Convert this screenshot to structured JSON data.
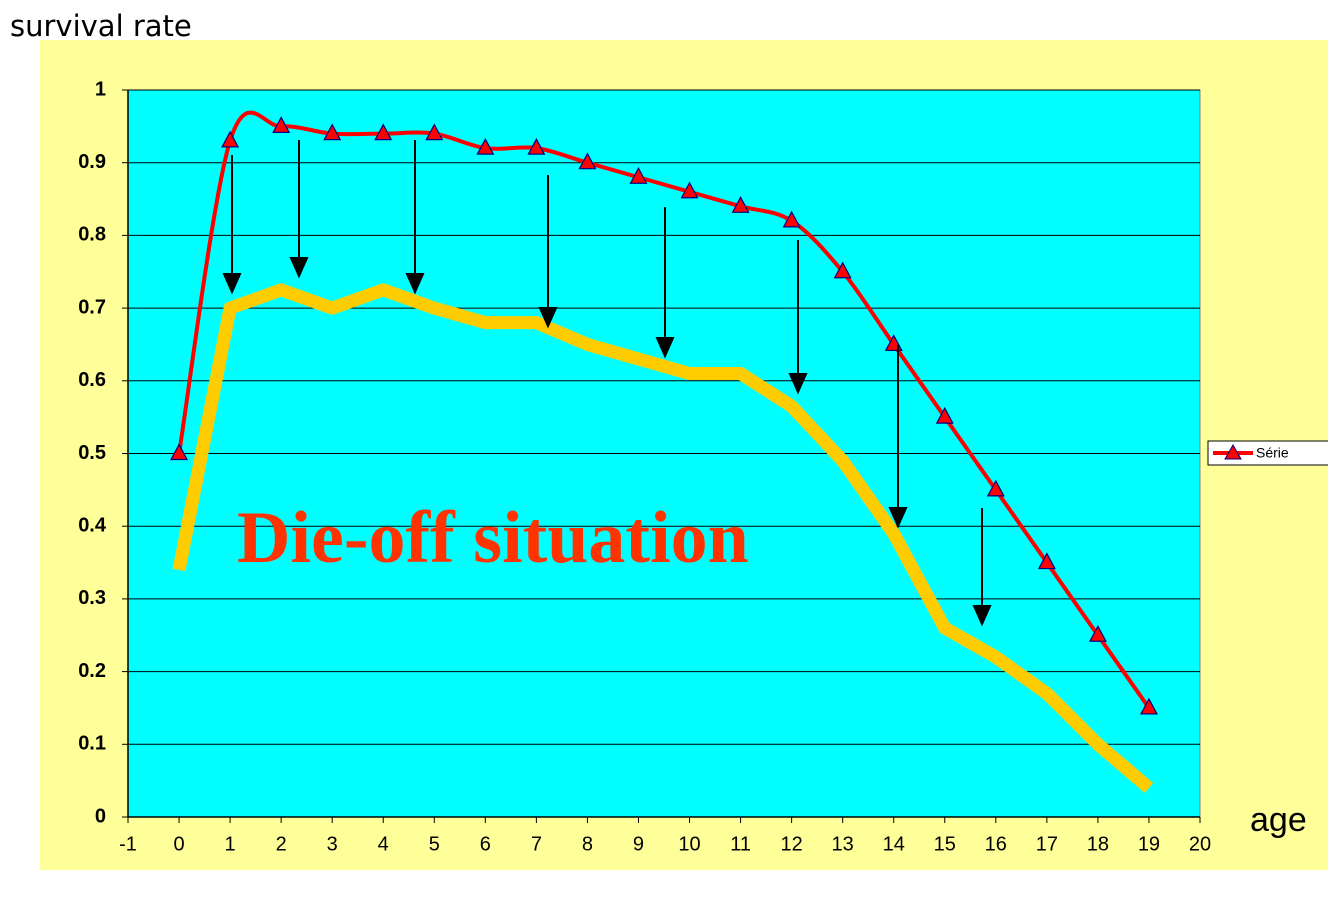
{
  "chart_data": {
    "type": "line",
    "y_label": "survival rate",
    "x_label": "age",
    "annotation": "Die-off situation",
    "x": [
      0,
      1,
      2,
      3,
      4,
      5,
      6,
      7,
      8,
      9,
      10,
      11,
      12,
      13,
      14,
      15,
      16,
      17,
      18,
      19
    ],
    "series": [
      {
        "name": "Série",
        "color": "#ff0000",
        "marker": "triangle",
        "values": [
          0.5,
          0.93,
          0.95,
          0.94,
          0.94,
          0.94,
          0.92,
          0.92,
          0.9,
          0.88,
          0.86,
          0.84,
          0.82,
          0.75,
          0.65,
          0.55,
          0.45,
          0.35,
          0.25,
          0.15
        ]
      },
      {
        "color": "#ffcc00",
        "values": [
          0.34,
          0.7,
          0.725,
          0.7,
          0.725,
          0.7,
          0.68,
          0.68,
          0.65,
          0.63,
          0.61,
          0.61,
          0.565,
          0.49,
          0.39,
          0.26,
          0.22,
          0.17,
          0.1,
          0.04
        ]
      }
    ],
    "xlim": [
      -1,
      20
    ],
    "xticks": [
      -1,
      0,
      1,
      2,
      3,
      4,
      5,
      6,
      7,
      8,
      9,
      10,
      11,
      12,
      13,
      14,
      15,
      16,
      17,
      18,
      19,
      20
    ],
    "ylim": [
      0,
      1
    ],
    "yticks": [
      0,
      0.1,
      0.2,
      0.3,
      0.4,
      0.5,
      0.6,
      0.7,
      0.8,
      0.9,
      1
    ],
    "grid": true,
    "legend": "right"
  }
}
